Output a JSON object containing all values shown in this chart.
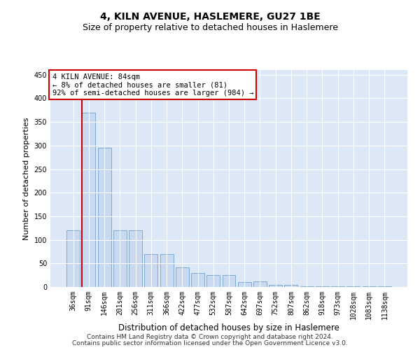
{
  "title": "4, KILN AVENUE, HASLEMERE, GU27 1BE",
  "subtitle": "Size of property relative to detached houses in Haslemere",
  "xlabel": "Distribution of detached houses by size in Haslemere",
  "ylabel": "Number of detached properties",
  "categories": [
    "36sqm",
    "91sqm",
    "146sqm",
    "201sqm",
    "256sqm",
    "311sqm",
    "366sqm",
    "422sqm",
    "477sqm",
    "532sqm",
    "587sqm",
    "642sqm",
    "697sqm",
    "752sqm",
    "807sqm",
    "862sqm",
    "918sqm",
    "973sqm",
    "1028sqm",
    "1083sqm",
    "1138sqm"
  ],
  "values": [
    120,
    370,
    295,
    120,
    120,
    70,
    70,
    42,
    30,
    25,
    25,
    10,
    12,
    5,
    5,
    2,
    1,
    1,
    1,
    1,
    1
  ],
  "bar_color": "#c9d9ef",
  "bar_edge_color": "#6fa0cc",
  "annotation_box_text": "4 KILN AVENUE: 84sqm\n← 8% of detached houses are smaller (81)\n92% of semi-detached houses are larger (984) →",
  "annotation_box_color": "white",
  "annotation_box_edge_color": "#cc0000",
  "vline_color": "#cc0000",
  "vline_x_bar_index": 1,
  "ylim": [
    0,
    460
  ],
  "yticks": [
    0,
    50,
    100,
    150,
    200,
    250,
    300,
    350,
    400,
    450
  ],
  "background_color": "#dce8f5",
  "grid_color": "white",
  "footer_line1": "Contains HM Land Registry data © Crown copyright and database right 2024.",
  "footer_line2": "Contains public sector information licensed under the Open Government Licence v3.0.",
  "title_fontsize": 10,
  "subtitle_fontsize": 9,
  "xlabel_fontsize": 8.5,
  "ylabel_fontsize": 8,
  "tick_fontsize": 7,
  "annotation_fontsize": 7.5,
  "footer_fontsize": 6.5
}
